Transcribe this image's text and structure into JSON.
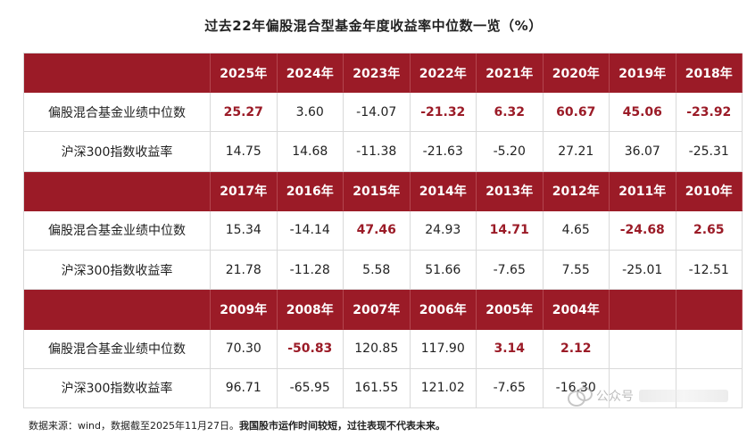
{
  "title": "过去22年偏股混合型基金年度收益率中位数一览（%）",
  "row_labels": {
    "fund_median": "偏股混合基金业绩中位数",
    "csi300": "沪深300指数收益率"
  },
  "sections": [
    {
      "years": [
        "2025年",
        "2024年",
        "2023年",
        "2022年",
        "2021年",
        "2020年",
        "2019年",
        "2018年"
      ],
      "fund": [
        "25.27",
        "3.60",
        "-14.07",
        "-21.32",
        "6.32",
        "60.67",
        "45.06",
        "-23.92"
      ],
      "fund_highlight": [
        true,
        false,
        false,
        true,
        true,
        true,
        true,
        true
      ],
      "csi": [
        "14.75",
        "14.68",
        "-11.38",
        "-21.63",
        "-5.20",
        "27.21",
        "36.07",
        "-25.31"
      ]
    },
    {
      "years": [
        "2017年",
        "2016年",
        "2015年",
        "2014年",
        "2013年",
        "2012年",
        "2011年",
        "2010年"
      ],
      "fund": [
        "15.34",
        "-14.14",
        "47.46",
        "24.93",
        "14.71",
        "4.65",
        "-24.68",
        "2.65"
      ],
      "fund_highlight": [
        false,
        false,
        true,
        false,
        true,
        false,
        true,
        true
      ],
      "csi": [
        "21.78",
        "-11.28",
        "5.58",
        "51.66",
        "-7.65",
        "7.55",
        "-25.01",
        "-12.51"
      ]
    },
    {
      "years": [
        "2009年",
        "2008年",
        "2007年",
        "2006年",
        "2005年",
        "2004年",
        "",
        ""
      ],
      "fund": [
        "70.30",
        "-50.83",
        "120.85",
        "117.90",
        "3.14",
        "2.12",
        "",
        ""
      ],
      "fund_highlight": [
        false,
        true,
        false,
        false,
        true,
        true,
        false,
        false
      ],
      "csi": [
        "96.71",
        "-65.95",
        "161.55",
        "121.02",
        "-7.65",
        "-16.30",
        "",
        ""
      ]
    }
  ],
  "note": {
    "source": "数据来源：wind，数据截至2025年11月27日。",
    "disclaimer": "我国股市运作时间较短，过往表现不代表未来。"
  },
  "watermark_text": "公众号"
}
